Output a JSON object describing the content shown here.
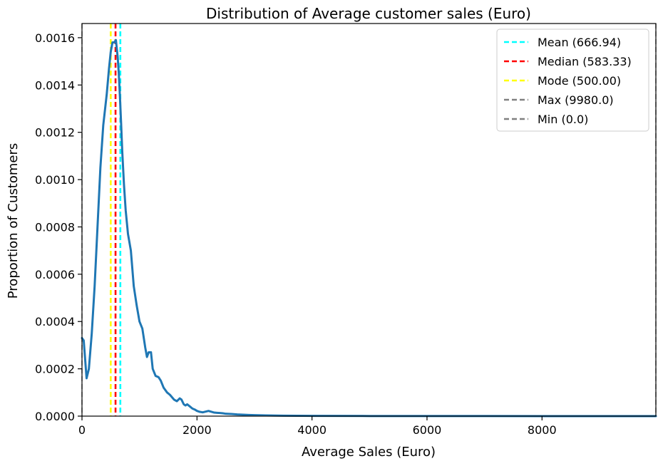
{
  "chart_data": {
    "type": "line",
    "title": "Distribution of Average customer sales (Euro)",
    "xlabel": "Average Sales (Euro)",
    "ylabel": "Proportion of Customers",
    "xlim": [
      0,
      9980
    ],
    "ylim": [
      0,
      0.00166
    ],
    "xticks": [
      0,
      2000,
      4000,
      6000,
      8000
    ],
    "xtick_labels": [
      "0",
      "2000",
      "4000",
      "6000",
      "8000"
    ],
    "yticks": [
      0,
      0.0002,
      0.0004,
      0.0006,
      0.0008,
      0.001,
      0.0012,
      0.0014,
      0.0016
    ],
    "ytick_labels": [
      "0.0000",
      "0.0002",
      "0.0004",
      "0.0006",
      "0.0008",
      "0.0010",
      "0.0012",
      "0.0014",
      "0.0016"
    ],
    "grid": false,
    "legend_position": "top-right",
    "series": [
      {
        "color": "#1f77b4",
        "x": [
          0,
          30,
          80,
          120,
          170,
          220,
          270,
          320,
          370,
          430,
          470,
          500,
          530,
          560,
          590,
          620,
          640,
          660,
          680,
          700,
          730,
          760,
          800,
          850,
          900,
          950,
          1000,
          1050,
          1100,
          1130,
          1160,
          1200,
          1230,
          1280,
          1330,
          1370,
          1420,
          1480,
          1530,
          1600,
          1650,
          1700,
          1730,
          1770,
          1800,
          1830,
          1880,
          1920,
          1960,
          2000,
          2050,
          2100,
          2200,
          2300,
          2350,
          2400,
          2450,
          2500,
          2600,
          2700,
          2800,
          2900,
          3000,
          3200,
          3500,
          4000,
          5000,
          6000,
          7000,
          8000,
          9000,
          9980
        ],
        "y": [
          0.00033,
          0.00032,
          0.00016,
          0.0002,
          0.00035,
          0.00055,
          0.0008,
          0.00105,
          0.00123,
          0.00136,
          0.00147,
          0.00154,
          0.00158,
          0.00158,
          0.00159,
          0.00152,
          0.00145,
          0.00135,
          0.00124,
          0.00112,
          0.00098,
          0.00087,
          0.00077,
          0.0007,
          0.00055,
          0.00047,
          0.0004,
          0.00037,
          0.00029,
          0.00025,
          0.00027,
          0.00027,
          0.0002,
          0.00017,
          0.000165,
          0.00015,
          0.00012,
          0.0001,
          9e-05,
          7e-05,
          6.3e-05,
          7.5e-05,
          7e-05,
          5e-05,
          4.5e-05,
          5e-05,
          4e-05,
          3.2e-05,
          2.8e-05,
          2.2e-05,
          1.8e-05,
          1.6e-05,
          2.2e-05,
          1.5e-05,
          1.4e-05,
          1.3e-05,
          1.2e-05,
          1e-05,
          9e-06,
          7e-06,
          6e-06,
          5e-06,
          4e-06,
          3e-06,
          2e-06,
          1e-06,
          5e-07,
          3e-07,
          2e-07,
          1e-07,
          1e-07,
          0
        ]
      }
    ],
    "vlines": [
      {
        "label": "Mean (666.94)",
        "x": 666.94,
        "color": "#00ffff"
      },
      {
        "label": "Median (583.33)",
        "x": 583.33,
        "color": "#ff0000"
      },
      {
        "label": "Mode (500.00)",
        "x": 500,
        "color": "#ffff00"
      },
      {
        "label": "Max (9980.0)",
        "x": 9980,
        "color": "#808080"
      },
      {
        "label": "Min (0.0)",
        "x": 0,
        "color": "#808080"
      }
    ]
  }
}
